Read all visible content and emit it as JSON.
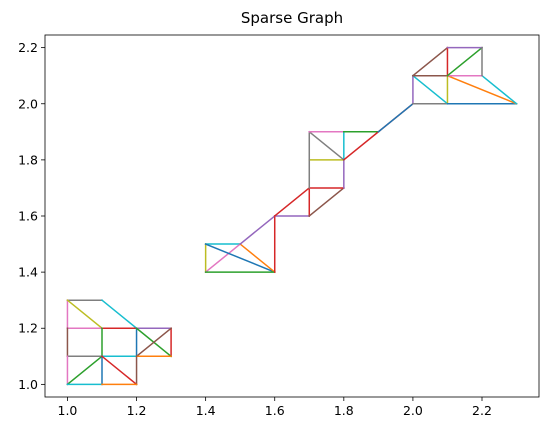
{
  "chart_data": {
    "type": "line",
    "title": "Sparse Graph",
    "xlabel": "",
    "ylabel": "",
    "xlim": [
      0.935,
      2.365
    ],
    "ylim": [
      0.955,
      2.245
    ],
    "x_ticks": [
      1.0,
      1.2,
      1.4,
      1.6,
      1.8,
      2.0,
      2.2
    ],
    "y_ticks": [
      1.0,
      1.2,
      1.4,
      1.6,
      1.8,
      2.0,
      2.2
    ],
    "grid": false,
    "legend": "none",
    "edges": [
      {
        "from": [
          1.0,
          1.3
        ],
        "to": [
          1.1,
          1.3
        ],
        "color": "#7f7f7f"
      },
      {
        "from": [
          1.1,
          1.3
        ],
        "to": [
          1.2,
          1.2
        ],
        "color": "#17becf"
      },
      {
        "from": [
          1.0,
          1.3
        ],
        "to": [
          1.0,
          1.2
        ],
        "color": "#e377c2"
      },
      {
        "from": [
          1.0,
          1.3
        ],
        "to": [
          1.1,
          1.2
        ],
        "color": "#bcbd22"
      },
      {
        "from": [
          1.0,
          1.2
        ],
        "to": [
          1.1,
          1.2
        ],
        "color": "#e377c2"
      },
      {
        "from": [
          1.1,
          1.2
        ],
        "to": [
          1.2,
          1.2
        ],
        "color": "#d62728"
      },
      {
        "from": [
          1.2,
          1.2
        ],
        "to": [
          1.3,
          1.2
        ],
        "color": "#9467bd"
      },
      {
        "from": [
          1.0,
          1.2
        ],
        "to": [
          1.0,
          1.1
        ],
        "color": "#8c564b"
      },
      {
        "from": [
          1.1,
          1.2
        ],
        "to": [
          1.1,
          1.1
        ],
        "color": "#2ca02c"
      },
      {
        "from": [
          1.2,
          1.2
        ],
        "to": [
          1.2,
          1.1
        ],
        "color": "#1f77b4"
      },
      {
        "from": [
          1.3,
          1.2
        ],
        "to": [
          1.3,
          1.1
        ],
        "color": "#d62728"
      },
      {
        "from": [
          1.2,
          1.2
        ],
        "to": [
          1.3,
          1.1
        ],
        "color": "#2ca02c"
      },
      {
        "from": [
          1.2,
          1.1
        ],
        "to": [
          1.3,
          1.2
        ],
        "color": "#8c564b"
      },
      {
        "from": [
          1.0,
          1.1
        ],
        "to": [
          1.1,
          1.1
        ],
        "color": "#7f7f7f"
      },
      {
        "from": [
          1.1,
          1.1
        ],
        "to": [
          1.2,
          1.1
        ],
        "color": "#17becf"
      },
      {
        "from": [
          1.2,
          1.1
        ],
        "to": [
          1.3,
          1.1
        ],
        "color": "#ff7f0e"
      },
      {
        "from": [
          1.0,
          1.1
        ],
        "to": [
          1.0,
          1.0
        ],
        "color": "#e377c2"
      },
      {
        "from": [
          1.0,
          1.0
        ],
        "to": [
          1.1,
          1.1
        ],
        "color": "#2ca02c"
      },
      {
        "from": [
          1.1,
          1.1
        ],
        "to": [
          1.1,
          1.0
        ],
        "color": "#1f77b4"
      },
      {
        "from": [
          1.1,
          1.1
        ],
        "to": [
          1.2,
          1.0
        ],
        "color": "#d62728"
      },
      {
        "from": [
          1.2,
          1.1
        ],
        "to": [
          1.2,
          1.0
        ],
        "color": "#8c564b"
      },
      {
        "from": [
          1.0,
          1.0
        ],
        "to": [
          1.1,
          1.0
        ],
        "color": "#17becf"
      },
      {
        "from": [
          1.1,
          1.0
        ],
        "to": [
          1.2,
          1.0
        ],
        "color": "#ff7f0e"
      },
      {
        "from": [
          1.4,
          1.5
        ],
        "to": [
          1.5,
          1.5
        ],
        "color": "#17becf"
      },
      {
        "from": [
          1.4,
          1.5
        ],
        "to": [
          1.4,
          1.4
        ],
        "color": "#bcbd22"
      },
      {
        "from": [
          1.4,
          1.4
        ],
        "to": [
          1.5,
          1.5
        ],
        "color": "#e377c2"
      },
      {
        "from": [
          1.4,
          1.5
        ],
        "to": [
          1.6,
          1.4
        ],
        "color": "#1f77b4"
      },
      {
        "from": [
          1.5,
          1.5
        ],
        "to": [
          1.6,
          1.4
        ],
        "color": "#ff7f0e"
      },
      {
        "from": [
          1.4,
          1.4
        ],
        "to": [
          1.6,
          1.4
        ],
        "color": "#2ca02c"
      },
      {
        "from": [
          1.5,
          1.5
        ],
        "to": [
          1.6,
          1.6
        ],
        "color": "#9467bd"
      },
      {
        "from": [
          1.6,
          1.6
        ],
        "to": [
          1.6,
          1.4
        ],
        "color": "#d62728"
      },
      {
        "from": [
          1.6,
          1.6
        ],
        "to": [
          1.7,
          1.6
        ],
        "color": "#9467bd"
      },
      {
        "from": [
          1.6,
          1.6
        ],
        "to": [
          1.7,
          1.7
        ],
        "color": "#d62728"
      },
      {
        "from": [
          1.7,
          1.6
        ],
        "to": [
          1.7,
          1.7
        ],
        "color": "#d62728"
      },
      {
        "from": [
          1.7,
          1.6
        ],
        "to": [
          1.8,
          1.7
        ],
        "color": "#8c564b"
      },
      {
        "from": [
          1.7,
          1.7
        ],
        "to": [
          1.8,
          1.7
        ],
        "color": "#d62728"
      },
      {
        "from": [
          1.8,
          1.7
        ],
        "to": [
          1.8,
          1.8
        ],
        "color": "#9467bd"
      },
      {
        "from": [
          1.7,
          1.7
        ],
        "to": [
          1.7,
          1.8
        ],
        "color": "#7f7f7f"
      },
      {
        "from": [
          1.7,
          1.8
        ],
        "to": [
          1.8,
          1.8
        ],
        "color": "#bcbd22"
      },
      {
        "from": [
          1.7,
          1.8
        ],
        "to": [
          1.7,
          1.9
        ],
        "color": "#7f7f7f"
      },
      {
        "from": [
          1.7,
          1.9
        ],
        "to": [
          1.8,
          1.8
        ],
        "color": "#7f7f7f"
      },
      {
        "from": [
          1.8,
          1.8
        ],
        "to": [
          1.8,
          1.9
        ],
        "color": "#17becf"
      },
      {
        "from": [
          1.7,
          1.9
        ],
        "to": [
          1.8,
          1.9
        ],
        "color": "#e377c2"
      },
      {
        "from": [
          1.8,
          1.9
        ],
        "to": [
          1.9,
          1.9
        ],
        "color": "#2ca02c"
      },
      {
        "from": [
          1.8,
          1.8
        ],
        "to": [
          2.0,
          2.0
        ],
        "color": "#d62728"
      },
      {
        "from": [
          1.9,
          1.9
        ],
        "to": [
          2.0,
          2.0
        ],
        "color": "#1f77b4"
      },
      {
        "from": [
          2.0,
          2.0
        ],
        "to": [
          2.0,
          2.1
        ],
        "color": "#9467bd"
      },
      {
        "from": [
          2.0,
          2.0
        ],
        "to": [
          2.1,
          2.0
        ],
        "color": "#7f7f7f"
      },
      {
        "from": [
          2.0,
          2.1
        ],
        "to": [
          2.1,
          2.0
        ],
        "color": "#17becf"
      },
      {
        "from": [
          2.0,
          2.1
        ],
        "to": [
          2.1,
          2.1
        ],
        "color": "#8c564b"
      },
      {
        "from": [
          2.1,
          2.1
        ],
        "to": [
          2.1,
          2.0
        ],
        "color": "#bcbd22"
      },
      {
        "from": [
          2.1,
          2.0
        ],
        "to": [
          2.3,
          2.0
        ],
        "color": "#1f77b4"
      },
      {
        "from": [
          2.1,
          2.1
        ],
        "to": [
          2.3,
          2.0
        ],
        "color": "#ff7f0e"
      },
      {
        "from": [
          2.2,
          2.1
        ],
        "to": [
          2.3,
          2.0
        ],
        "color": "#17becf"
      },
      {
        "from": [
          2.1,
          2.1
        ],
        "to": [
          2.2,
          2.1
        ],
        "color": "#e377c2"
      },
      {
        "from": [
          2.0,
          2.1
        ],
        "to": [
          2.1,
          2.2
        ],
        "color": "#8c564b"
      },
      {
        "from": [
          2.1,
          2.2
        ],
        "to": [
          2.1,
          2.1
        ],
        "color": "#d62728"
      },
      {
        "from": [
          2.1,
          2.1
        ],
        "to": [
          2.2,
          2.2
        ],
        "color": "#2ca02c"
      },
      {
        "from": [
          2.1,
          2.2
        ],
        "to": [
          2.2,
          2.2
        ],
        "color": "#9467bd"
      },
      {
        "from": [
          2.2,
          2.2
        ],
        "to": [
          2.2,
          2.1
        ],
        "color": "#7f7f7f"
      }
    ]
  }
}
